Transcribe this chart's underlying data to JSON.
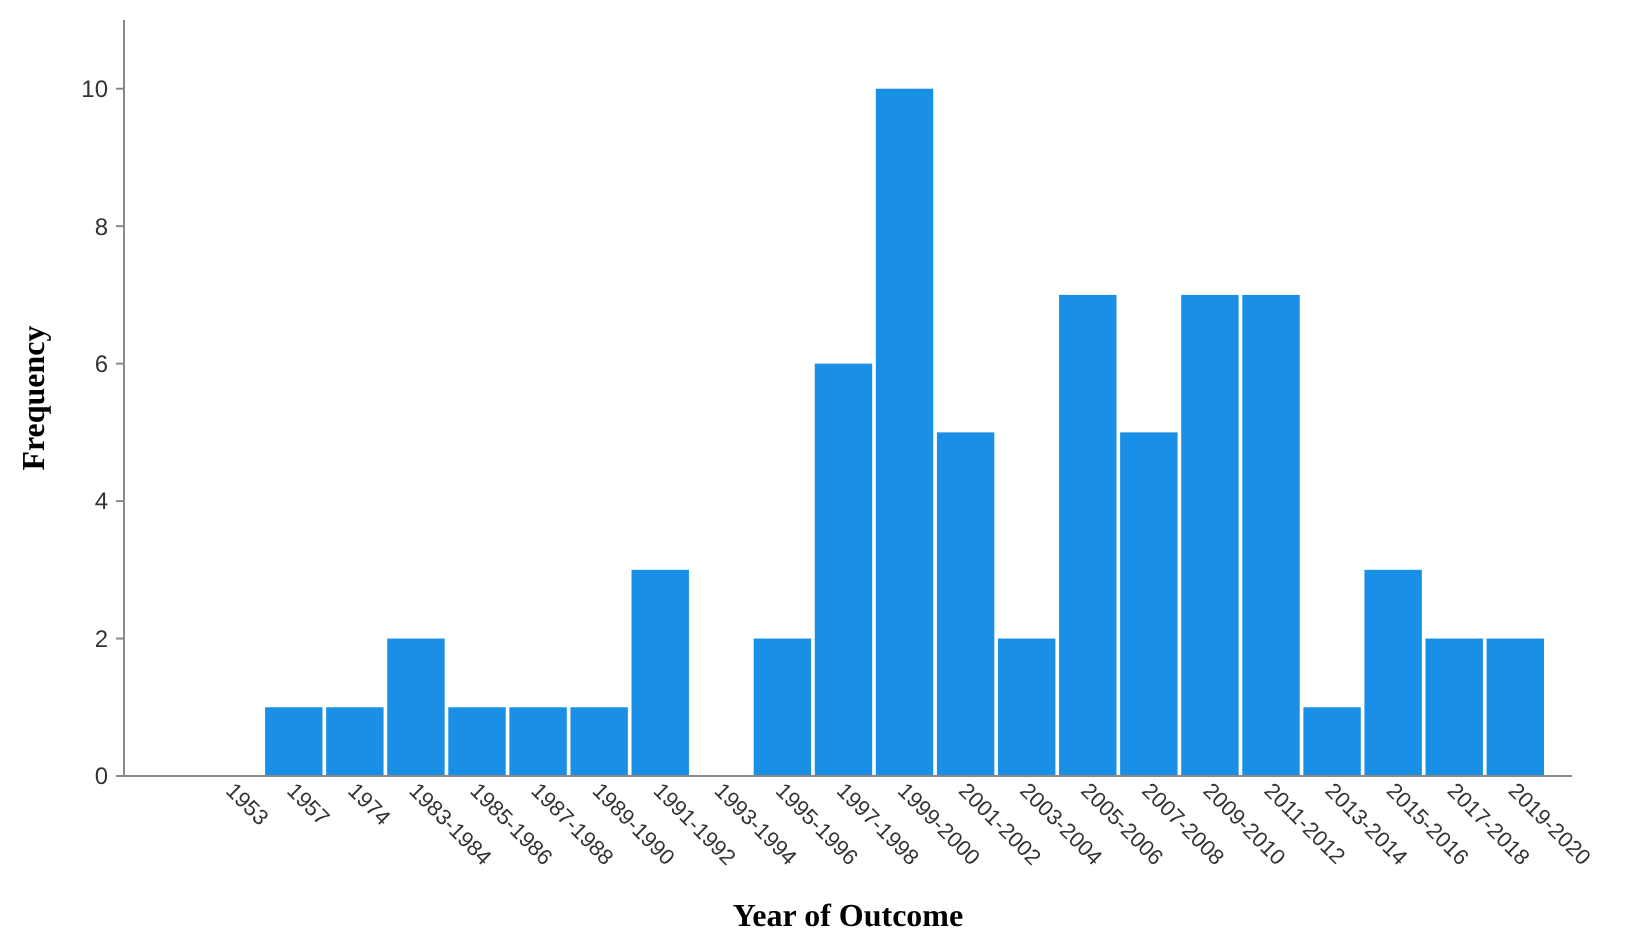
{
  "chart_data": {
    "type": "bar",
    "xlabel": "Year of Outcome",
    "ylabel": "Frequency",
    "categories": [
      "1953",
      "1957",
      "1974",
      "1983-1984",
      "1985-1986",
      "1987-1988",
      "1989-1990",
      "1991-1992",
      "1993-1994",
      "1995-1996",
      "1997-1998",
      "1999-2000",
      "2001-2002",
      "2003-2004",
      "2005-2006",
      "2007-2008",
      "2009-2010",
      "2011-2012",
      "2013-2014",
      "2015-2016",
      "2017-2018",
      "2019-2020"
    ],
    "values": [
      0,
      1,
      1,
      2,
      1,
      1,
      1,
      3,
      0,
      2,
      6,
      10,
      5,
      2,
      7,
      5,
      7,
      7,
      1,
      3,
      2,
      2
    ],
    "color": "#1a8fe6",
    "ylim": [
      0,
      11
    ],
    "yticks": [
      0,
      2,
      4,
      6,
      8,
      10
    ],
    "grid": false
  }
}
